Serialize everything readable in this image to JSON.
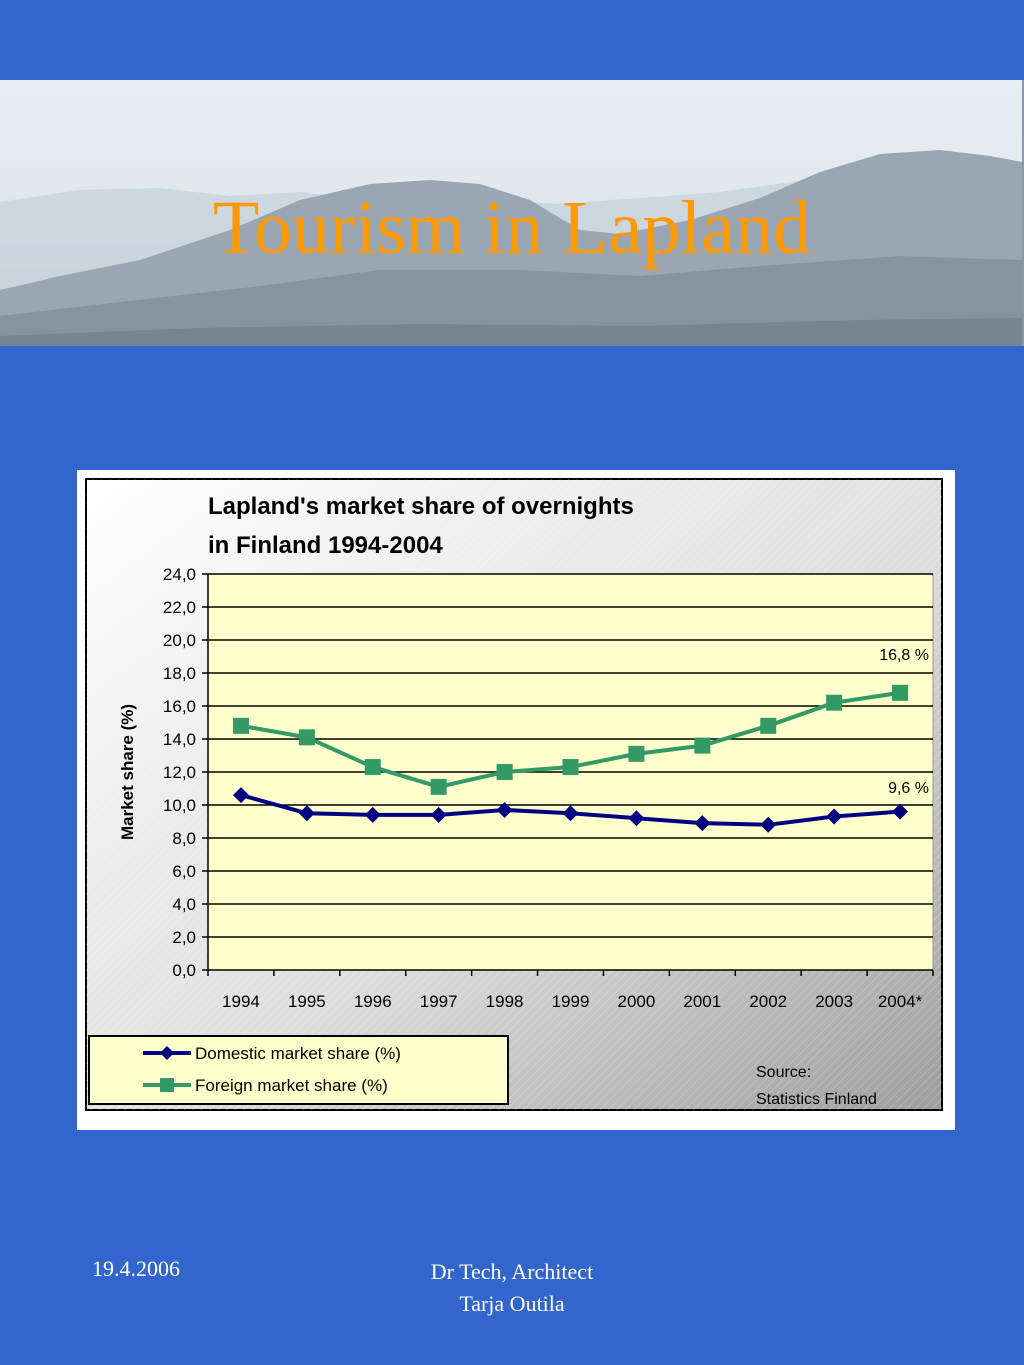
{
  "slide": {
    "title": "Tourism in Lapland",
    "footer_date": "19.4.2006",
    "footer_author_line1": "Dr Tech, Architect",
    "footer_author_line2": "Tarja Outila",
    "background_color": "#3366cc",
    "title_color": "#ff9900"
  },
  "chart_data": {
    "type": "line",
    "title_line1": "Lapland's market share of overnights",
    "title_line2": "in Finland 1994-2004",
    "xlabel": "",
    "ylabel": "Market share (%)",
    "ylim": [
      0,
      24
    ],
    "yticks": [
      "0,0",
      "2,0",
      "4,0",
      "6,0",
      "8,0",
      "10,0",
      "12,0",
      "14,0",
      "16,0",
      "18,0",
      "20,0",
      "22,0",
      "24,0"
    ],
    "categories": [
      "1994",
      "1995",
      "1996",
      "1997",
      "1998",
      "1999",
      "2000",
      "2001",
      "2002",
      "2003",
      "2004*"
    ],
    "series": [
      {
        "name": "Domestic market share (%)",
        "color": "#000080",
        "marker": "diamond",
        "values": [
          10.6,
          9.5,
          9.4,
          9.4,
          9.7,
          9.5,
          9.2,
          8.9,
          8.8,
          9.3,
          9.6
        ],
        "end_label": "9,6 %"
      },
      {
        "name": "Foreign market share (%)",
        "color": "#339966",
        "marker": "square",
        "values": [
          14.8,
          14.1,
          12.3,
          11.1,
          12.0,
          12.3,
          13.1,
          13.6,
          14.8,
          16.2,
          16.8
        ],
        "end_label": "16,8 %"
      }
    ],
    "plot_background": "#ffffcc",
    "grid": true,
    "legend_position": "bottom-left",
    "source_line1": "Source:",
    "source_line2": "Statistics Finland"
  }
}
